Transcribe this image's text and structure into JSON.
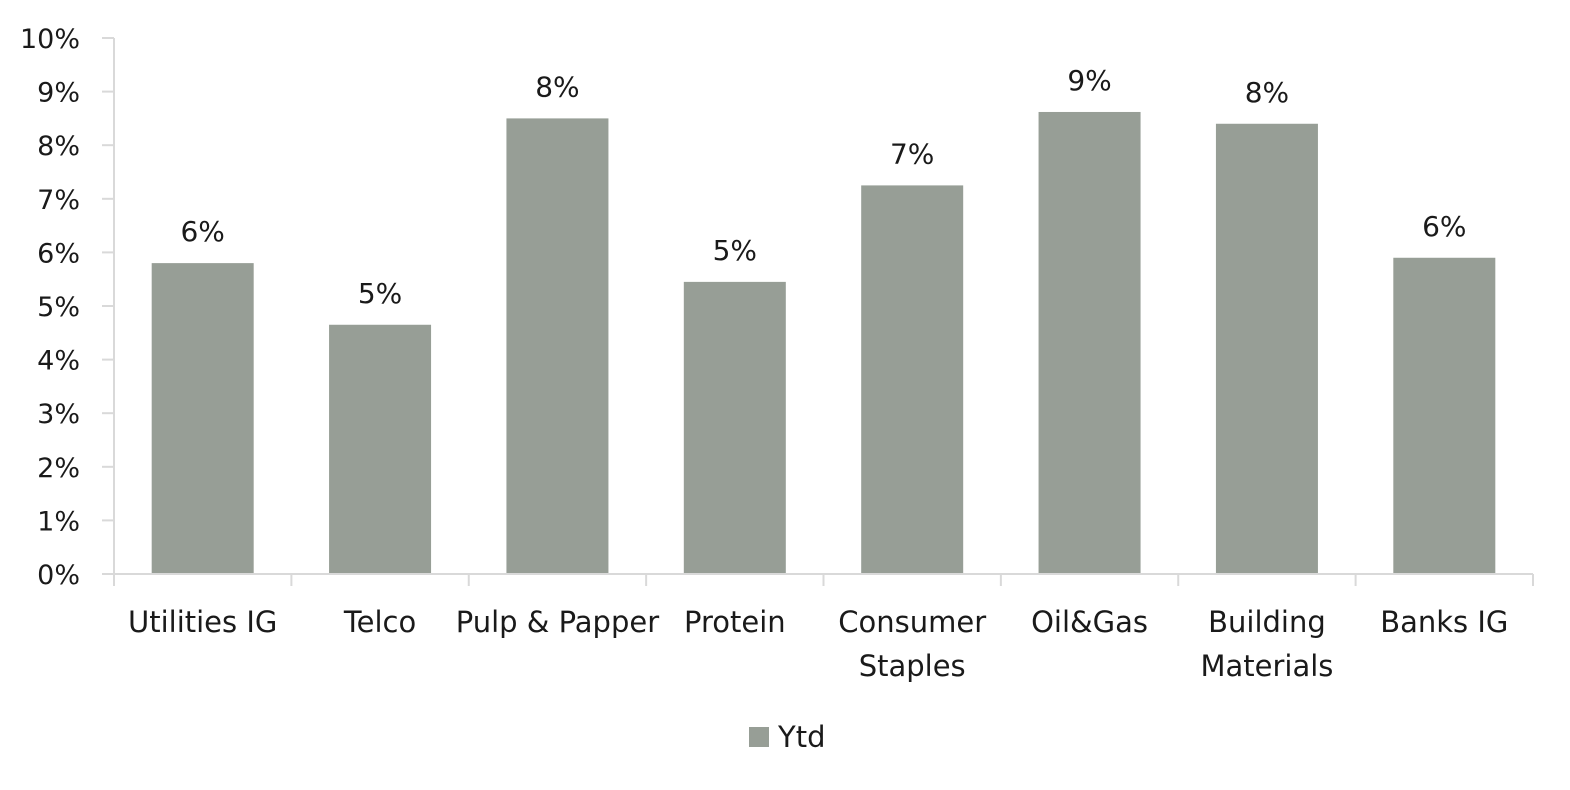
{
  "chart_data": {
    "type": "bar",
    "categories": [
      "Utilities IG",
      "Telco",
      "Pulp & Papper",
      "Protein",
      "Consumer Staples",
      "Oil&Gas",
      "Building Materials",
      "Banks IG"
    ],
    "series": [
      {
        "name": "Ytd",
        "values": [
          5.8,
          4.65,
          8.5,
          5.45,
          7.25,
          8.62,
          8.4,
          5.9
        ],
        "data_labels": [
          "6%",
          "5%",
          "8%",
          "5%",
          "7%",
          "9%",
          "8%",
          "6%"
        ],
        "color": "#979e96"
      }
    ],
    "y_ticks": [
      "0%",
      "1%",
      "2%",
      "3%",
      "4%",
      "5%",
      "6%",
      "7%",
      "8%",
      "9%",
      "10%"
    ],
    "ylim": [
      0,
      10
    ],
    "title": "",
    "xlabel": "",
    "ylabel": "",
    "grid": false,
    "legend_position": "bottom-center",
    "axis_color": "#d9d9d9"
  }
}
